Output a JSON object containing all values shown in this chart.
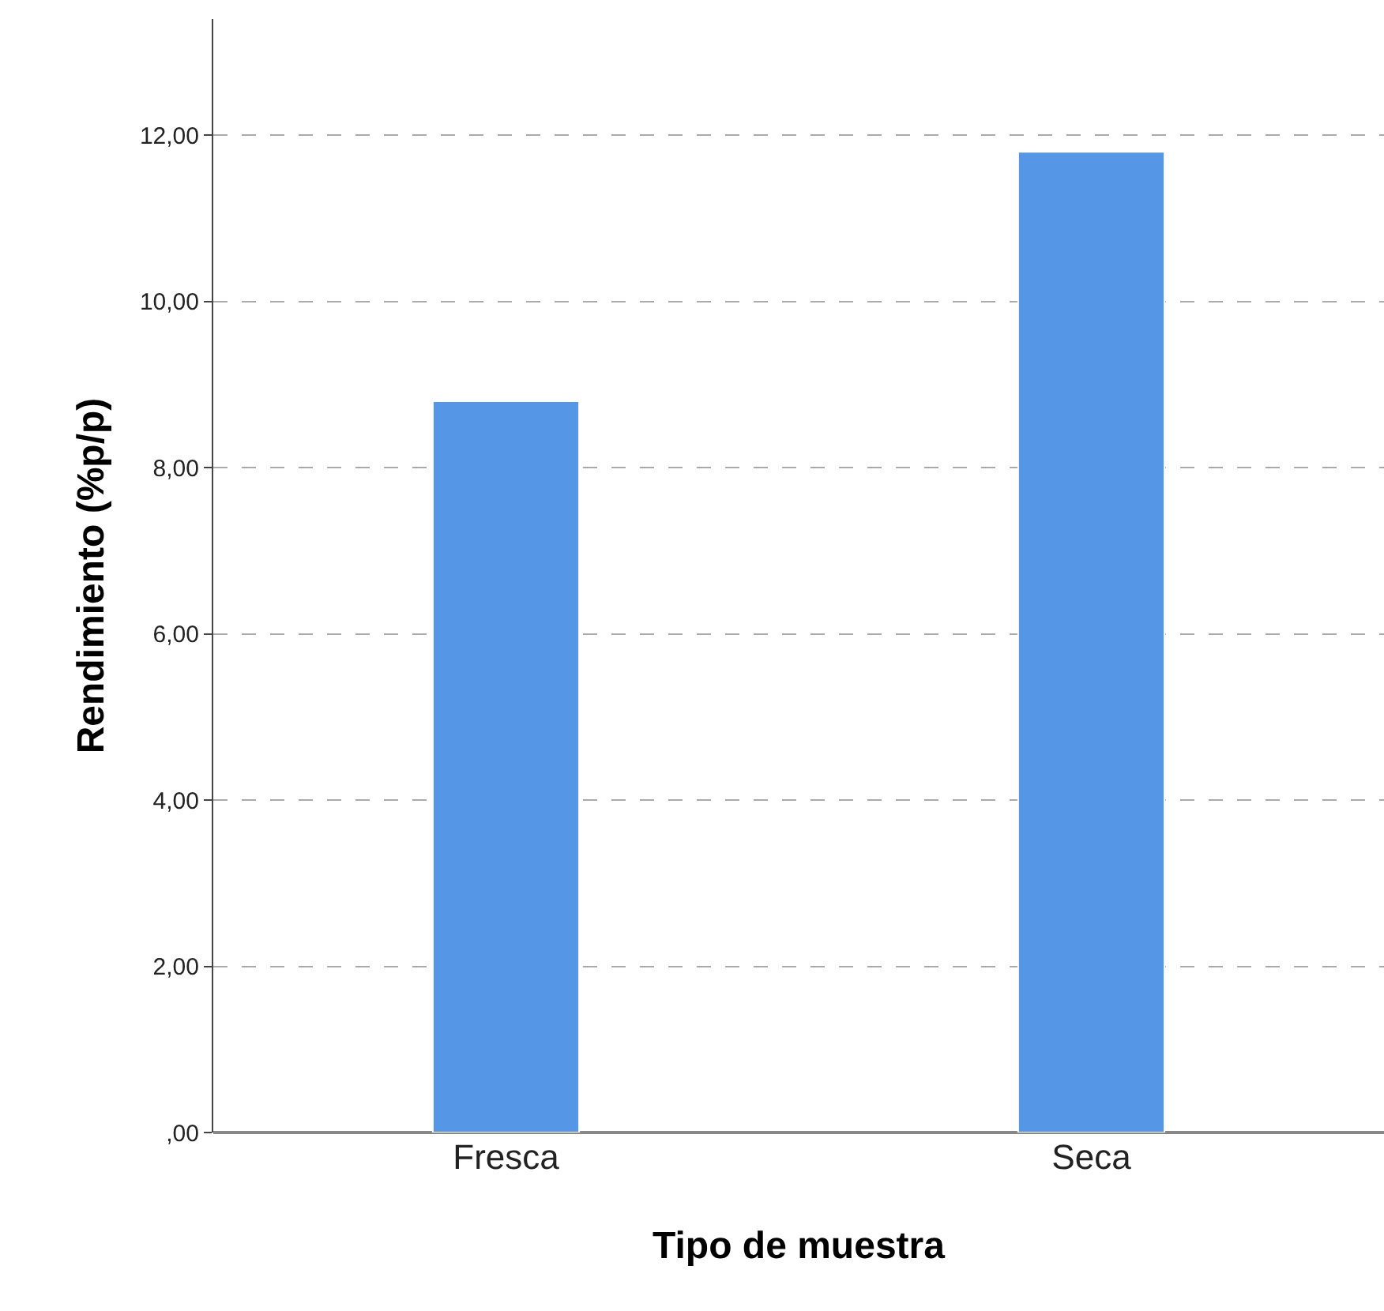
{
  "chart_data": {
    "type": "bar",
    "xlabel": "Tipo de muestra",
    "ylabel": "Rendimiento (%p/p)",
    "categories": [
      "Fresca",
      "Seca"
    ],
    "values": [
      8.8,
      11.8
    ],
    "color": "#5596e6",
    "ylim": [
      0,
      13.4
    ],
    "yticks": [
      {
        "value": 0,
        "label": ",00"
      },
      {
        "value": 2,
        "label": "2,00"
      },
      {
        "value": 4,
        "label": "4,00"
      },
      {
        "value": 6,
        "label": "6,00"
      },
      {
        "value": 8,
        "label": "8,00"
      },
      {
        "value": 10,
        "label": "10,00"
      },
      {
        "value": 12,
        "label": "12,00"
      }
    ],
    "grid": "y"
  }
}
